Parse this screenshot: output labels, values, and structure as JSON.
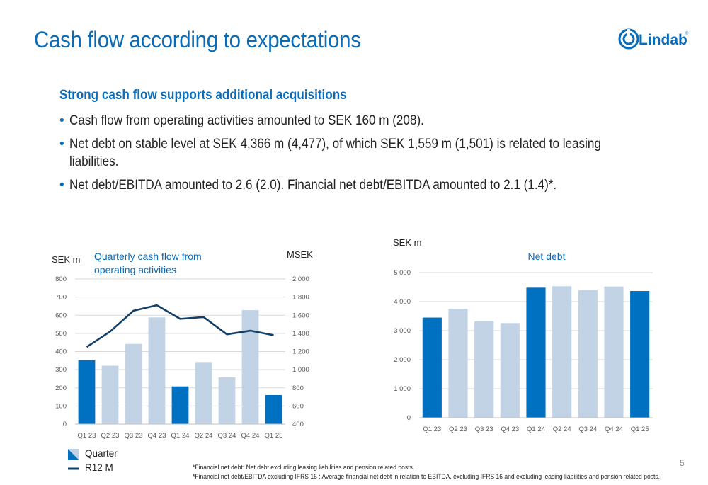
{
  "page": {
    "title": "Cash flow according to expectations",
    "subheading": "Strong cash flow supports additional acquisitions",
    "bullets": [
      "Cash flow from operating activities amounted to SEK 160 m (208).",
      "Net debt on stable level at SEK 4,366 m (4,477), of which SEK 1,559 m (1,501) is related to leasing liabilities.",
      "Net debt/EBITDA amounted to 2.6 (2.0). Financial net debt/EBITDA amounted to 2.1 (1.4)*."
    ],
    "footnotes": [
      "*Financial net debt: Net debt excluding leasing liabilities and pension related posts.",
      "*Financial net debt/EBITDA excluding IFRS 16 : Average financial net debt in relation to EBITDA, excluding IFRS 16 and excluding leasing liabilities and pension related posts."
    ],
    "page_number": "5",
    "logo_text": "Lindab"
  },
  "colors": {
    "brand": "#0a6cb8",
    "bar_dark": "#0070c0",
    "bar_light": "#c2d3e6",
    "line": "#143f66",
    "grid": "#d9d9d9",
    "axis_text": "#595959"
  },
  "chart_data": [
    {
      "type": "bar",
      "title": "Quarterly cash flow from operating activities",
      "ylabel": "SEK m",
      "y2label": "MSEK",
      "categories": [
        "Q1 23",
        "Q2 23",
        "Q3 23",
        "Q4 23",
        "Q1 24",
        "Q2 24",
        "Q3 24",
        "Q4 24",
        "Q1 25"
      ],
      "series": [
        {
          "name": "Quarter",
          "type": "bar",
          "axis": "left",
          "values": [
            352,
            322,
            442,
            588,
            208,
            342,
            258,
            628,
            160
          ],
          "highlight": [
            true,
            false,
            false,
            false,
            true,
            false,
            false,
            false,
            true
          ]
        },
        {
          "name": "R12 M",
          "type": "line",
          "axis": "right",
          "values": [
            1250,
            1420,
            1650,
            1710,
            1560,
            1580,
            1390,
            1430,
            1380
          ]
        }
      ],
      "ylim": [
        0,
        800
      ],
      "yticks": [
        "0",
        "100",
        "200",
        "300",
        "400",
        "500",
        "600",
        "700",
        "800"
      ],
      "y2lim": [
        400,
        2000
      ],
      "y2ticks": [
        "400",
        "600",
        "800",
        "1 000",
        "1 200",
        "1 400",
        "1 600",
        "1 800",
        "2 000"
      ],
      "grid": true,
      "legend": "bottom-left"
    },
    {
      "type": "bar",
      "title": "Net debt",
      "ylabel": "SEK m",
      "categories": [
        "Q1 23",
        "Q2 23",
        "Q3 23",
        "Q4 23",
        "Q1 24",
        "Q2 24",
        "Q3 24",
        "Q4 24",
        "Q1 25"
      ],
      "values": [
        3450,
        3750,
        3320,
        3260,
        4480,
        4530,
        4400,
        4520,
        4366
      ],
      "highlight": [
        true,
        false,
        false,
        false,
        true,
        false,
        false,
        false,
        true
      ],
      "ylim": [
        0,
        5000
      ],
      "yticks": [
        "0",
        "1 000",
        "2 000",
        "3 000",
        "4 000",
        "5 000"
      ],
      "grid": true
    }
  ]
}
